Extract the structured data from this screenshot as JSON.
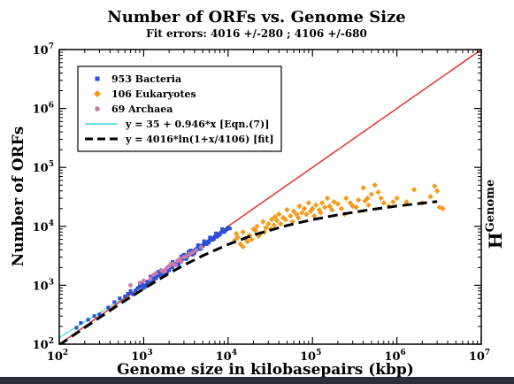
{
  "chart_data": {
    "type": "scatter",
    "title": "Number of ORFs vs. Genome Size",
    "subtitle": "Fit errors: 4016 +/-280 ;  4106 +/-680",
    "xlabel": "Genome size in kilobasepairs (kbp)",
    "ylabel": "Number of ORFs",
    "right_label": {
      "base": "H",
      "sup": "Genome"
    },
    "x_scale": "log",
    "y_scale": "log",
    "xlim": [
      100,
      10000000
    ],
    "ylim": [
      100,
      10000000
    ],
    "grid": false,
    "legend_placement": "top-left",
    "x_ticks": [
      {
        "base": "10",
        "exp": "2"
      },
      {
        "base": "10",
        "exp": "3"
      },
      {
        "base": "10",
        "exp": "4"
      },
      {
        "base": "10",
        "exp": "5"
      },
      {
        "base": "10",
        "exp": "6"
      },
      {
        "base": "10",
        "exp": "7"
      }
    ],
    "y_ticks": [
      {
        "base": "10",
        "exp": "2"
      },
      {
        "base": "10",
        "exp": "3"
      },
      {
        "base": "10",
        "exp": "4"
      },
      {
        "base": "10",
        "exp": "5"
      },
      {
        "base": "10",
        "exp": "6"
      },
      {
        "base": "10",
        "exp": "7"
      }
    ],
    "series": [
      {
        "name": "953 Bacteria",
        "kind": "points",
        "marker": "square",
        "color": "#2a4fd6",
        "points": [
          [
            160,
            190
          ],
          [
            180,
            230
          ],
          [
            220,
            260
          ],
          [
            260,
            300
          ],
          [
            300,
            320
          ],
          [
            380,
            420
          ],
          [
            450,
            520
          ],
          [
            520,
            600
          ],
          [
            600,
            650
          ],
          [
            650,
            720
          ],
          [
            700,
            800
          ],
          [
            800,
            820
          ],
          [
            850,
            900
          ],
          [
            900,
            950
          ],
          [
            1000,
            1000
          ],
          [
            1100,
            1150
          ],
          [
            1200,
            1100
          ],
          [
            1300,
            1300
          ],
          [
            1400,
            1400
          ],
          [
            1500,
            1450
          ],
          [
            1600,
            1600
          ],
          [
            1700,
            1550
          ],
          [
            1800,
            1800
          ],
          [
            1900,
            1700
          ],
          [
            2000,
            1900
          ],
          [
            2100,
            2100
          ],
          [
            2200,
            2000
          ],
          [
            2300,
            2200
          ],
          [
            2400,
            2300
          ],
          [
            2500,
            2400
          ],
          [
            2600,
            2500
          ],
          [
            2700,
            2600
          ],
          [
            2800,
            2700
          ],
          [
            2900,
            2800
          ],
          [
            3000,
            2900
          ],
          [
            3100,
            3000
          ],
          [
            3200,
            3200
          ],
          [
            3300,
            3100
          ],
          [
            3400,
            3300
          ],
          [
            3500,
            3400
          ],
          [
            3700,
            3600
          ],
          [
            3900,
            3800
          ],
          [
            4100,
            4000
          ],
          [
            4300,
            4200
          ],
          [
            4500,
            4300
          ],
          [
            4700,
            4500
          ],
          [
            4900,
            4700
          ],
          [
            5100,
            4900
          ],
          [
            5300,
            5100
          ],
          [
            5500,
            5300
          ],
          [
            5800,
            5500
          ],
          [
            6000,
            5700
          ],
          [
            6300,
            6000
          ],
          [
            6600,
            6300
          ],
          [
            7000,
            6700
          ],
          [
            7400,
            7000
          ],
          [
            7800,
            7400
          ],
          [
            8200,
            7800
          ],
          [
            8700,
            8200
          ],
          [
            9200,
            8500
          ],
          [
            9800,
            9000
          ],
          [
            1200,
            1400
          ],
          [
            1500,
            1700
          ],
          [
            1800,
            1500
          ],
          [
            2200,
            2500
          ],
          [
            2500,
            2200
          ],
          [
            2800,
            3100
          ],
          [
            3200,
            2800
          ],
          [
            3600,
            3900
          ],
          [
            4000,
            3500
          ],
          [
            4400,
            4800
          ],
          [
            4800,
            4200
          ],
          [
            5200,
            5600
          ],
          [
            5600,
            5000
          ],
          [
            6100,
            6500
          ],
          [
            6500,
            5900
          ],
          [
            7200,
            7600
          ],
          [
            7600,
            6900
          ],
          [
            8500,
            9000
          ],
          [
            9000,
            8000
          ],
          [
            1000,
            900
          ],
          [
            1100,
            1000
          ],
          [
            1300,
            1200
          ],
          [
            1400,
            1300
          ],
          [
            1600,
            1500
          ],
          [
            2000,
            1800
          ],
          [
            2600,
            2300
          ],
          [
            3000,
            3300
          ],
          [
            3400,
            3700
          ],
          [
            3800,
            3300
          ],
          [
            4200,
            3900
          ],
          [
            4600,
            4100
          ],
          [
            5000,
            4600
          ],
          [
            5400,
            5000
          ],
          [
            5900,
            5300
          ],
          [
            6800,
            6100
          ],
          [
            7300,
            6600
          ],
          [
            8000,
            7200
          ],
          [
            9500,
            8800
          ],
          [
            10000,
            9500
          ],
          [
            10500,
            9200
          ],
          [
            900,
            1000
          ],
          [
            700,
            750
          ],
          [
            750,
            700
          ],
          [
            950,
            1050
          ],
          [
            1050,
            950
          ]
        ]
      },
      {
        "name": "106 Eukaryotes",
        "kind": "points",
        "marker": "diamond",
        "color": "#f29b1f",
        "points": [
          [
            12000,
            5800
          ],
          [
            12500,
            7500
          ],
          [
            13000,
            6500
          ],
          [
            14000,
            5000
          ],
          [
            15000,
            8000
          ],
          [
            16000,
            6200
          ],
          [
            18000,
            7000
          ],
          [
            20000,
            9000
          ],
          [
            22000,
            10000
          ],
          [
            24000,
            7500
          ],
          [
            26000,
            12000
          ],
          [
            28000,
            9500
          ],
          [
            30000,
            11000
          ],
          [
            33000,
            13000
          ],
          [
            35000,
            10500
          ],
          [
            38000,
            12500
          ],
          [
            40000,
            16000
          ],
          [
            42000,
            11000
          ],
          [
            45000,
            14000
          ],
          [
            50000,
            19000
          ],
          [
            55000,
            15000
          ],
          [
            60000,
            18000
          ],
          [
            65000,
            16000
          ],
          [
            70000,
            22000
          ],
          [
            75000,
            17000
          ],
          [
            80000,
            20000
          ],
          [
            90000,
            25000
          ],
          [
            95000,
            18000
          ],
          [
            100000,
            20000
          ],
          [
            110000,
            23000
          ],
          [
            120000,
            19000
          ],
          [
            130000,
            25000
          ],
          [
            140000,
            21000
          ],
          [
            150000,
            30000
          ],
          [
            160000,
            22000
          ],
          [
            180000,
            26000
          ],
          [
            200000,
            24000
          ],
          [
            220000,
            20000
          ],
          [
            250000,
            30000
          ],
          [
            280000,
            25000
          ],
          [
            300000,
            22000
          ],
          [
            350000,
            28000
          ],
          [
            400000,
            45000
          ],
          [
            420000,
            27000
          ],
          [
            450000,
            30000
          ],
          [
            500000,
            35000
          ],
          [
            550000,
            50000
          ],
          [
            600000,
            38000
          ],
          [
            700000,
            25000
          ],
          [
            800000,
            22000
          ],
          [
            1000000,
            30000
          ],
          [
            1300000,
            26000
          ],
          [
            1600000,
            42000
          ],
          [
            2000000,
            25000
          ],
          [
            2500000,
            32000
          ],
          [
            2800000,
            48000
          ],
          [
            3000000,
            40000
          ],
          [
            3200000,
            21000
          ],
          [
            3500000,
            20000
          ],
          [
            15000,
            4500
          ],
          [
            17000,
            5500
          ],
          [
            19000,
            6000
          ],
          [
            21000,
            8500
          ],
          [
            23000,
            6800
          ],
          [
            27000,
            8000
          ],
          [
            32000,
            9000
          ],
          [
            36000,
            14500
          ],
          [
            48000,
            13000
          ],
          [
            58000,
            12000
          ],
          [
            68000,
            14000
          ],
          [
            85000,
            16000
          ],
          [
            105000,
            15000
          ],
          [
            125000,
            17000
          ],
          [
            170000,
            19000
          ],
          [
            240000,
            16000
          ],
          [
            330000,
            21000
          ],
          [
            460000,
            23000
          ],
          [
            650000,
            30000
          ],
          [
            900000,
            26000
          ]
        ]
      },
      {
        "name": "69 Archaea",
        "kind": "points",
        "marker": "circle",
        "color": "#c77ca8",
        "points": [
          [
            700,
            1000
          ],
          [
            900,
            1100
          ],
          [
            1200,
            1300
          ],
          [
            1400,
            1600
          ],
          [
            1600,
            1800
          ],
          [
            1800,
            1750
          ],
          [
            2000,
            2100
          ],
          [
            2200,
            2300
          ],
          [
            2400,
            2200
          ],
          [
            2600,
            2700
          ],
          [
            2800,
            2500
          ],
          [
            3000,
            3000
          ],
          [
            3200,
            3100
          ],
          [
            3500,
            3400
          ],
          [
            1000,
            1200
          ],
          [
            1300,
            1500
          ],
          [
            1700,
            1700
          ],
          [
            1900,
            2000
          ],
          [
            2100,
            2300
          ],
          [
            2300,
            2200
          ],
          [
            2500,
            2600
          ],
          [
            2700,
            2800
          ],
          [
            3800,
            3600
          ],
          [
            4200,
            3900
          ],
          [
            4800,
            4400
          ]
        ]
      },
      {
        "name": "y = 35 + 0.946*x [Eqn.(7)]",
        "kind": "line",
        "style": "solid",
        "color": "#6fe0df",
        "points": [
          [
            100,
            130
          ],
          [
            1000,
            981
          ],
          [
            3000,
            2873
          ]
        ]
      },
      {
        "name": "y = 4016*ln(1+x/4106) [fit]",
        "kind": "line",
        "style": "dashed",
        "color": "#000000",
        "points": [
          [
            100,
            97
          ],
          [
            200,
            191
          ],
          [
            500,
            462
          ],
          [
            1000,
            871
          ],
          [
            2000,
            1590
          ],
          [
            3000,
            2190
          ],
          [
            5000,
            3175
          ],
          [
            10000,
            4925
          ],
          [
            20000,
            7115
          ],
          [
            50000,
            10364
          ],
          [
            100000,
            12976
          ],
          [
            200000,
            15689
          ],
          [
            500000,
            19310
          ],
          [
            1000000,
            22050
          ],
          [
            3000000,
            26430
          ]
        ]
      },
      {
        "name": "",
        "kind": "line",
        "style": "solid",
        "color": "#e0403a",
        "points": [
          [
            100,
            100
          ],
          [
            10000000,
            10000000
          ]
        ]
      }
    ]
  }
}
